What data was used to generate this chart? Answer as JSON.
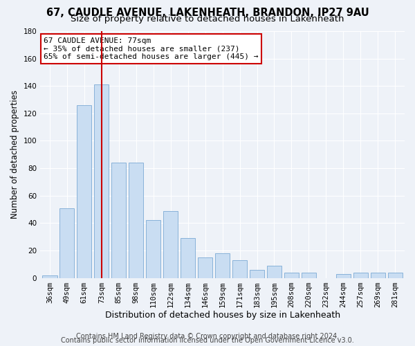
{
  "title1": "67, CAUDLE AVENUE, LAKENHEATH, BRANDON, IP27 9AU",
  "title2": "Size of property relative to detached houses in Lakenheath",
  "xlabel": "Distribution of detached houses by size in Lakenheath",
  "ylabel": "Number of detached properties",
  "categories": [
    "36sqm",
    "49sqm",
    "61sqm",
    "73sqm",
    "85sqm",
    "98sqm",
    "110sqm",
    "122sqm",
    "134sqm",
    "146sqm",
    "159sqm",
    "171sqm",
    "183sqm",
    "195sqm",
    "208sqm",
    "220sqm",
    "232sqm",
    "244sqm",
    "257sqm",
    "269sqm",
    "281sqm"
  ],
  "values": [
    2,
    51,
    126,
    141,
    84,
    84,
    42,
    49,
    29,
    15,
    18,
    13,
    6,
    9,
    4,
    4,
    0,
    3,
    4,
    4,
    4
  ],
  "bar_color": "#c9ddf2",
  "bar_edge_color": "#7baad4",
  "highlight_bar_index": 3,
  "highlight_line_color": "#cc0000",
  "ylim": [
    0,
    180
  ],
  "yticks": [
    0,
    20,
    40,
    60,
    80,
    100,
    120,
    140,
    160,
    180
  ],
  "annotation_line1": "67 CAUDLE AVENUE: 77sqm",
  "annotation_line2": "← 35% of detached houses are smaller (237)",
  "annotation_line3": "65% of semi-detached houses are larger (445) →",
  "annotation_box_color": "#ffffff",
  "annotation_box_edge_color": "#cc0000",
  "footer1": "Contains HM Land Registry data © Crown copyright and database right 2024.",
  "footer2": "Contains public sector information licensed under the Open Government Licence v3.0.",
  "bg_color": "#eef2f8",
  "grid_color": "#ffffff",
  "title1_fontsize": 10.5,
  "title2_fontsize": 9.5,
  "xlabel_fontsize": 9,
  "ylabel_fontsize": 8.5,
  "tick_fontsize": 7.5,
  "annotation_fontsize": 8,
  "footer_fontsize": 7
}
